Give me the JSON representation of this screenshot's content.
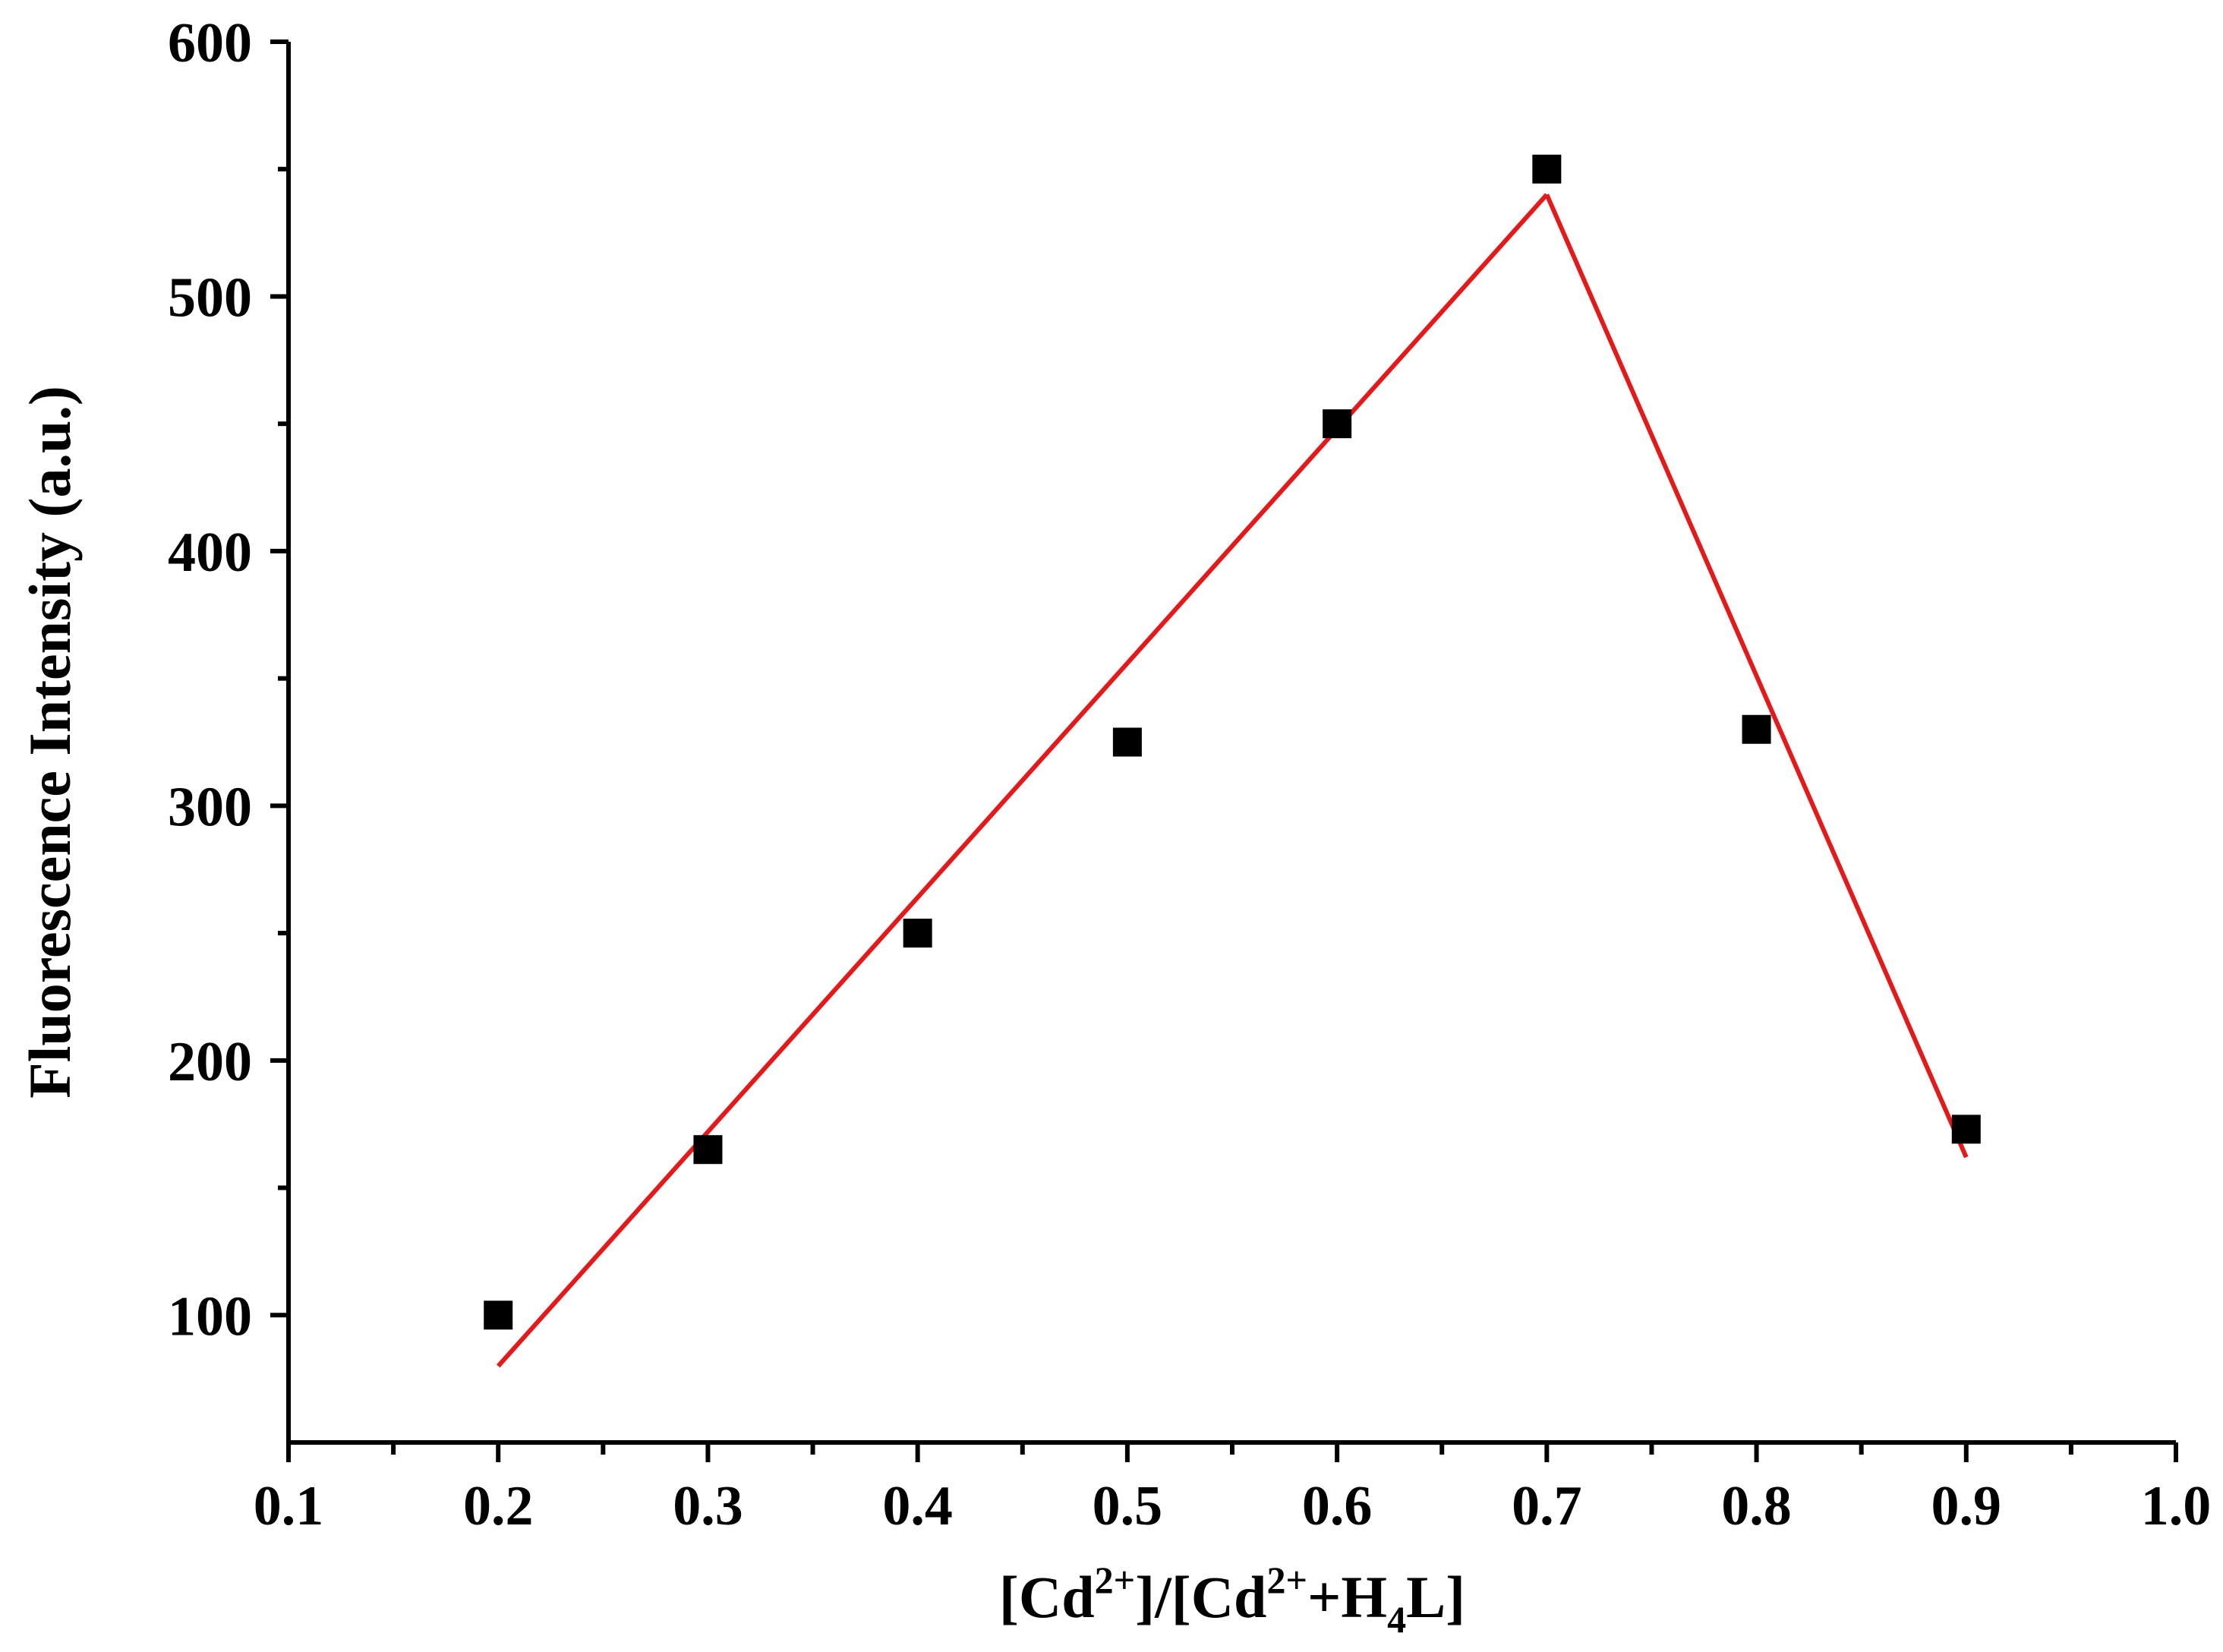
{
  "chart_data": {
    "type": "scatter",
    "title": "",
    "xlabel": {
      "parts": [
        {
          "text": "[Cd",
          "style": "normal"
        },
        {
          "text": "2+",
          "style": "sup"
        },
        {
          "text": "]/[Cd",
          "style": "normal"
        },
        {
          "text": "2+",
          "style": "sup"
        },
        {
          "text": "+H",
          "style": "normal"
        },
        {
          "text": "4",
          "style": "sub"
        },
        {
          "text": "L]",
          "style": "normal"
        }
      ]
    },
    "ylabel": "Fluorescence Intensity (a.u.)",
    "xlim": [
      0.1,
      1.0
    ],
    "ylim": [
      50,
      600
    ],
    "x_ticks": [
      "0.1",
      "0.2",
      "0.3",
      "0.4",
      "0.5",
      "0.6",
      "0.7",
      "0.8",
      "0.9",
      "1.0"
    ],
    "y_ticks": [
      "100",
      "200",
      "300",
      "400",
      "500",
      "600"
    ],
    "grid": false,
    "series": [
      {
        "marker": "square",
        "color": "#000000",
        "points": [
          {
            "x": 0.2,
            "y": 100
          },
          {
            "x": 0.3,
            "y": 165
          },
          {
            "x": 0.4,
            "y": 250
          },
          {
            "x": 0.5,
            "y": 325
          },
          {
            "x": 0.6,
            "y": 450
          },
          {
            "x": 0.7,
            "y": 550
          },
          {
            "x": 0.8,
            "y": 330
          },
          {
            "x": 0.9,
            "y": 173
          }
        ]
      }
    ],
    "fit_lines": [
      {
        "color": "#e31a1c",
        "x": [
          0.2,
          0.7
        ],
        "y": [
          80,
          540
        ]
      },
      {
        "color": "#e31a1c",
        "x": [
          0.7,
          0.9
        ],
        "y": [
          540,
          162
        ]
      }
    ]
  }
}
